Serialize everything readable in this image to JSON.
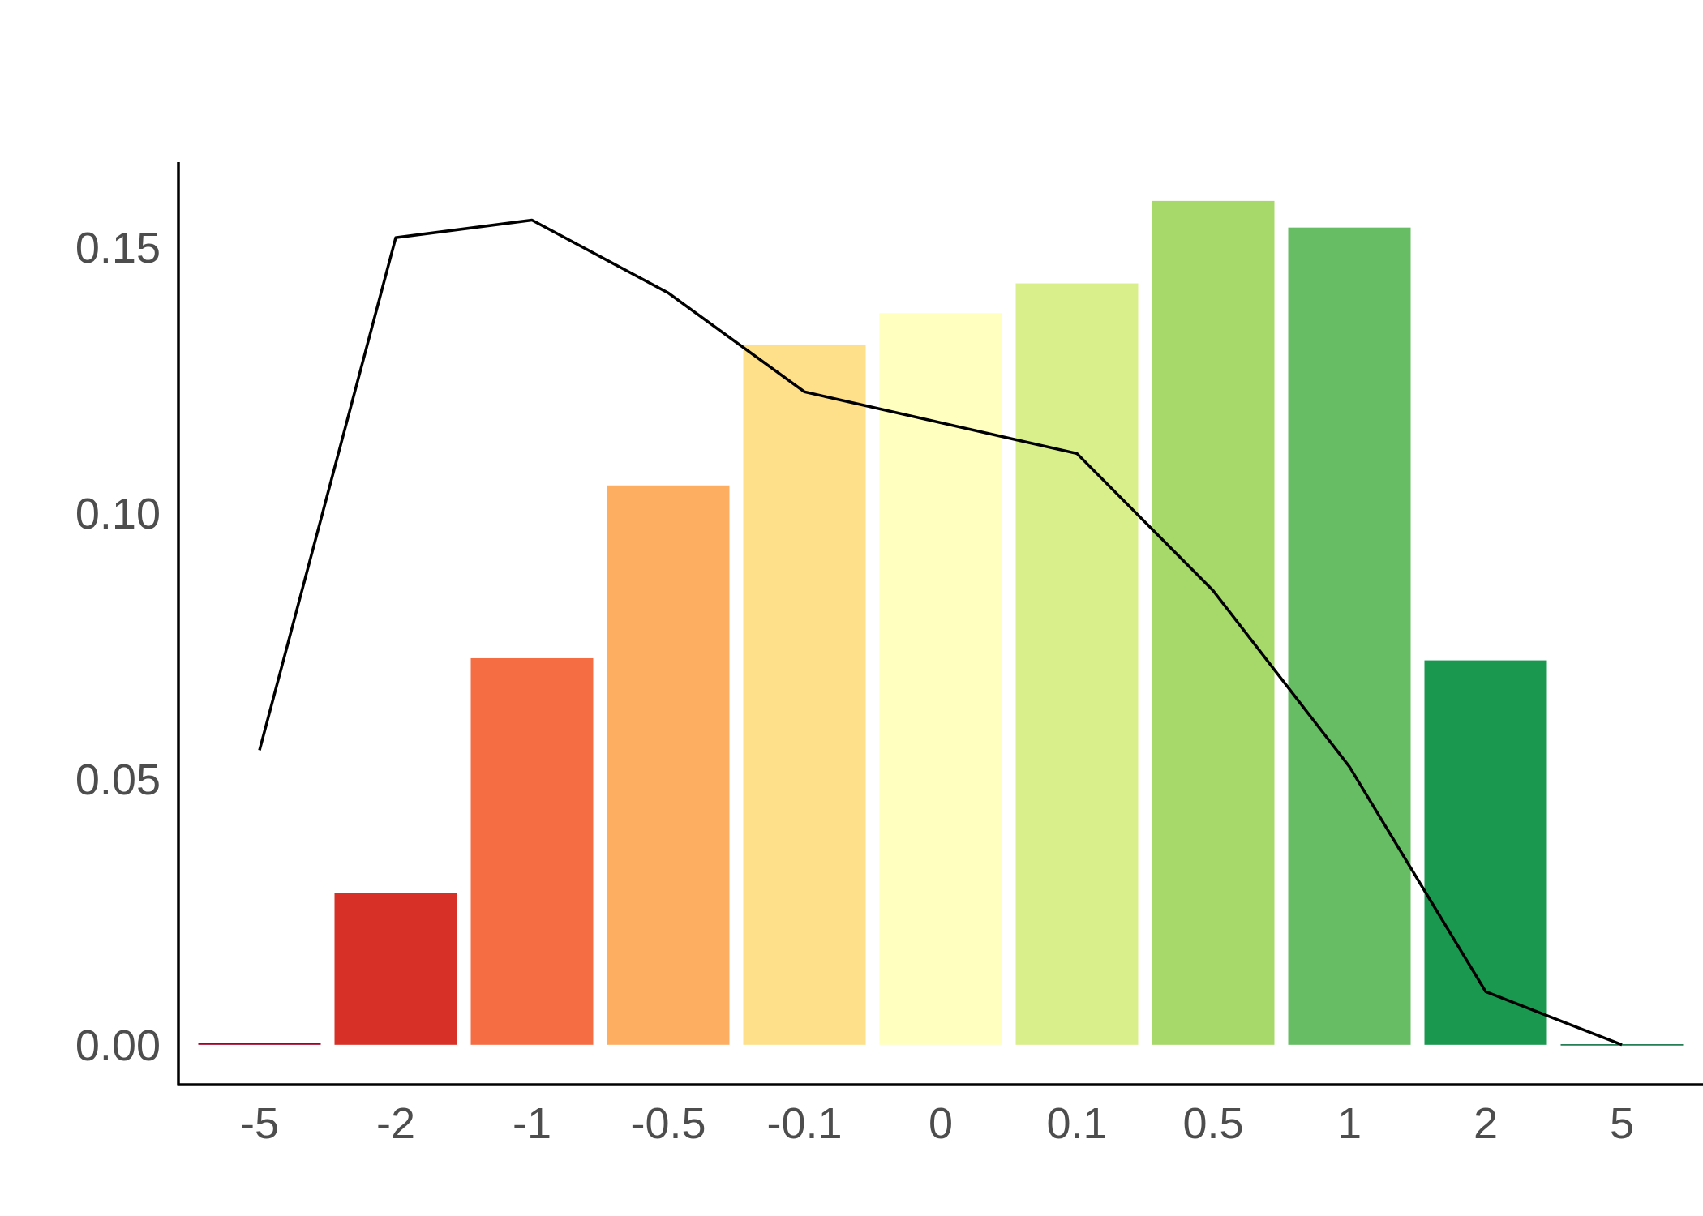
{
  "chart_data": {
    "type": "bar",
    "title": "",
    "xlabel": "",
    "ylabel": "",
    "categories": [
      "-5",
      "-2",
      "-1",
      "-0.5",
      "-0.1",
      "0",
      "0.1",
      "0.5",
      "1",
      "2",
      "5"
    ],
    "series": [
      {
        "type": "bar",
        "values": [
          0.0004,
          0.0285,
          0.0727,
          0.1052,
          0.1317,
          0.1376,
          0.1432,
          0.1587,
          0.1537,
          0.0723,
          0.0001
        ],
        "colors": [
          "#a50026",
          "#d73027",
          "#f46d43",
          "#fdae61",
          "#fee08b",
          "#ffffbf",
          "#d9ef8b",
          "#a6d96a",
          "#66bd63",
          "#1a9850",
          "#006837"
        ]
      },
      {
        "type": "line",
        "color": "#000000",
        "values": [
          0.0554,
          0.1518,
          0.1551,
          0.1414,
          0.1228,
          0.117,
          0.1112,
          0.0854,
          0.0523,
          0.01,
          0.0
        ]
      }
    ],
    "y_ticks": [
      "0.00",
      "0.05",
      "0.10",
      "0.15"
    ],
    "y_tick_values": [
      0,
      0.05,
      0.1,
      0.15
    ],
    "ylim": [
      -0.0075,
      0.166
    ],
    "grid": false,
    "legend": "none"
  }
}
